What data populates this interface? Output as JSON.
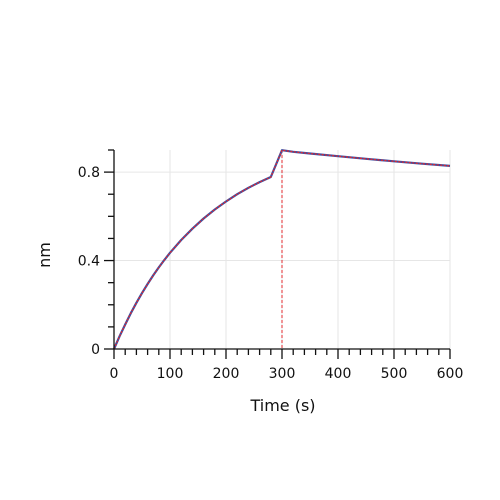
{
  "chart_data": {
    "type": "line",
    "title": "",
    "xlabel": "Time (s)",
    "ylabel": "nm",
    "xlim": [
      0,
      600
    ],
    "ylim": [
      0,
      0.9
    ],
    "x_ticks": [
      0,
      100,
      200,
      300,
      400,
      500,
      600
    ],
    "y_ticks": [
      0,
      0.4,
      0.8
    ],
    "x_tick_labels": [
      "0",
      "100",
      "200",
      "300",
      "400",
      "500",
      "600"
    ],
    "y_tick_labels": [
      "0",
      "0.4",
      "0.8"
    ],
    "grid": true,
    "vertical_markers": [
      0,
      300
    ],
    "colors": {
      "measured": "#3a4fa3",
      "fit": "#e0282e",
      "grid": "#e6e6e6",
      "axis": "#111111"
    },
    "series": [
      {
        "x": [
          0,
          10,
          20,
          30,
          40,
          50,
          60,
          70,
          80,
          90,
          100,
          120,
          140,
          160,
          180,
          200,
          220,
          240,
          260,
          280,
          300,
          320,
          350,
          400,
          450,
          500,
          550,
          600
        ],
        "values": [
          0.0,
          0.058,
          0.111,
          0.162,
          0.209,
          0.253,
          0.294,
          0.333,
          0.369,
          0.403,
          0.435,
          0.493,
          0.544,
          0.59,
          0.631,
          0.667,
          0.7,
          0.729,
          0.755,
          0.778,
          0.899,
          0.892,
          0.884,
          0.872,
          0.86,
          0.849,
          0.838,
          0.828
        ]
      },
      {
        "x": [
          0,
          10,
          20,
          30,
          40,
          50,
          60,
          70,
          80,
          90,
          100,
          120,
          140,
          160,
          180,
          200,
          220,
          240,
          260,
          280,
          300,
          320,
          350,
          400,
          450,
          500,
          550,
          600
        ],
        "values": [
          0.0,
          0.058,
          0.111,
          0.162,
          0.209,
          0.253,
          0.294,
          0.333,
          0.369,
          0.403,
          0.435,
          0.493,
          0.544,
          0.59,
          0.631,
          0.667,
          0.7,
          0.729,
          0.755,
          0.778,
          0.899,
          0.892,
          0.884,
          0.872,
          0.86,
          0.849,
          0.838,
          0.828
        ]
      }
    ]
  }
}
